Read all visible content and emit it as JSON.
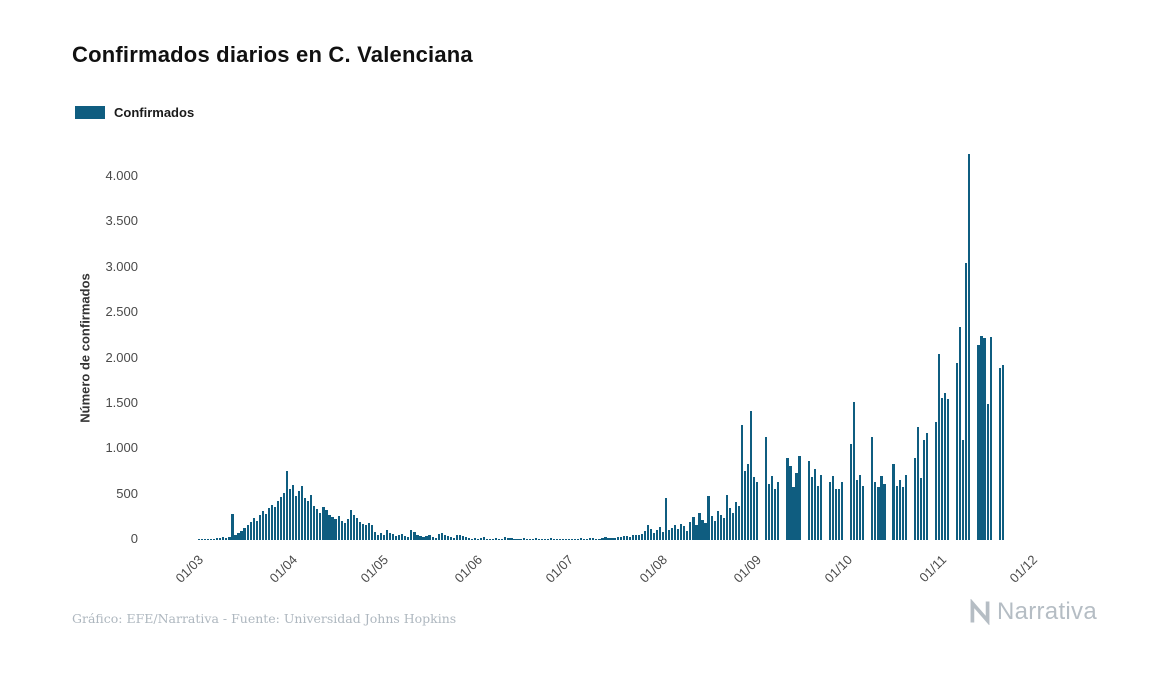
{
  "title": "Confirmados diarios en C. Valenciana",
  "legend": {
    "label": "Confirmados",
    "color": "#0f5d80"
  },
  "footer": {
    "credit": "Gráfico: EFE/Narrativa - Fuente: Universidad Johns Hopkins",
    "brand": "Narrativa"
  },
  "chart_data": {
    "type": "bar",
    "title": "Confirmados diarios en C. Valenciana",
    "xlabel": "",
    "ylabel": "Número de confirmados",
    "grid": false,
    "legend_position": "top-left",
    "bar_color": "#0f5d80",
    "ylim": [
      0,
      4300
    ],
    "y_ticks": [
      0,
      500,
      1000,
      1500,
      2000,
      2500,
      3000,
      3500,
      4000
    ],
    "y_tick_labels": [
      "0",
      "500",
      "1.000",
      "1.500",
      "2.000",
      "2.500",
      "3.000",
      "3.500",
      "4.000"
    ],
    "x_tick_labels": [
      "01/03",
      "01/04",
      "01/05",
      "01/06",
      "01/07",
      "01/08",
      "01/09",
      "01/10",
      "01/11",
      "01/12"
    ],
    "x_tick_day_offsets": [
      0,
      31,
      61,
      92,
      122,
      153,
      184,
      214,
      245,
      275
    ],
    "series": [
      {
        "name": "Confirmados",
        "start_date": "01/03",
        "frequency": "daily",
        "values": [
          0,
          0,
          0,
          2,
          3,
          5,
          8,
          10,
          14,
          18,
          24,
          30,
          20,
          38,
          290,
          55,
          75,
          95,
          130,
          160,
          200,
          240,
          210,
          280,
          320,
          290,
          350,
          390,
          360,
          430,
          470,
          520,
          760,
          560,
          610,
          480,
          540,
          590,
          460,
          430,
          500,
          380,
          340,
          300,
          360,
          330,
          280,
          250,
          230,
          260,
          210,
          190,
          230,
          330,
          270,
          240,
          200,
          180,
          160,
          190,
          170,
          90,
          60,
          75,
          50,
          115,
          80,
          65,
          45,
          55,
          70,
          40,
          35,
          105,
          90,
          60,
          45,
          30,
          40,
          55,
          35,
          25,
          70,
          80,
          50,
          40,
          30,
          25,
          55,
          60,
          45,
          35,
          20,
          15,
          25,
          10,
          18,
          30,
          12,
          8,
          15,
          22,
          10,
          14,
          30,
          25,
          20,
          15,
          10,
          12,
          18,
          8,
          10,
          15,
          20,
          12,
          8,
          10,
          14,
          18,
          10,
          12,
          10,
          8,
          12,
          15,
          10,
          8,
          14,
          20,
          12,
          10,
          18,
          25,
          15,
          12,
          20,
          30,
          25,
          18,
          22,
          35,
          30,
          40,
          45,
          38,
          50,
          60,
          55,
          70,
          95,
          170,
          120,
          80,
          105,
          140,
          90,
          460,
          110,
          130,
          160,
          120,
          180,
          150,
          100,
          200,
          250,
          170,
          300,
          220,
          190,
          480,
          260,
          210,
          320,
          280,
          240,
          500,
          350,
          300,
          420,
          380,
          1270,
          760,
          840,
          1420,
          690,
          640,
          0,
          0,
          1130,
          620,
          700,
          560,
          640,
          0,
          0,
          900,
          820,
          580,
          740,
          930,
          0,
          0,
          870,
          690,
          780,
          600,
          720,
          0,
          0,
          640,
          700,
          560,
          560,
          640,
          0,
          0,
          1060,
          1520,
          660,
          720,
          600,
          0,
          0,
          1130,
          640,
          580,
          700,
          620,
          0,
          0,
          840,
          600,
          660,
          580,
          720,
          0,
          0,
          900,
          1250,
          680,
          1100,
          1180,
          0,
          0,
          1300,
          2050,
          1560,
          1620,
          1550,
          0,
          0,
          1950,
          2350,
          1100,
          3050,
          4250,
          0,
          0,
          2150,
          2250,
          2230,
          1500,
          2240,
          0,
          0,
          1900,
          1930
        ]
      }
    ]
  }
}
